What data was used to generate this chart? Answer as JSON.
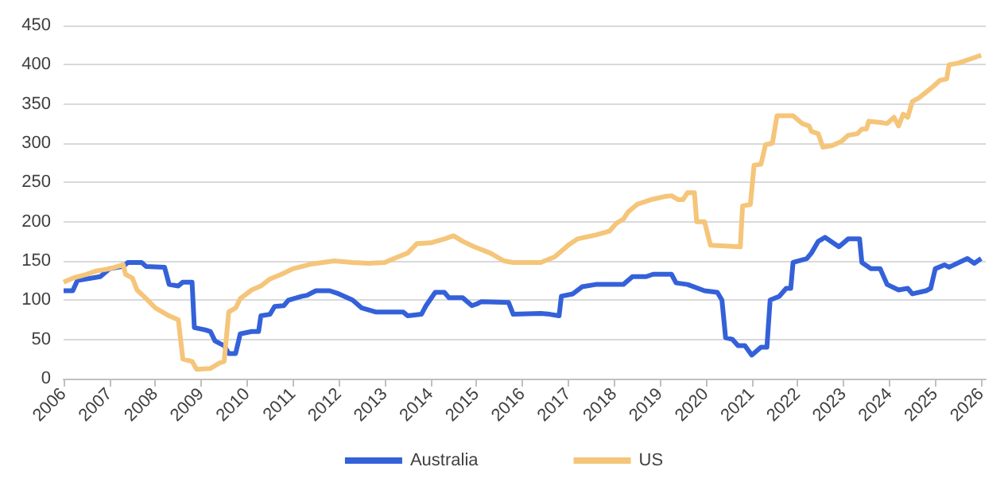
{
  "chart_data": {
    "type": "line",
    "xlim": [
      2006,
      2026.1
    ],
    "xticks": [
      2006,
      2007,
      2008,
      2009,
      2010,
      2011,
      2012,
      2013,
      2014,
      2015,
      2016,
      2017,
      2018,
      2019,
      2020,
      2021,
      2022,
      2023,
      2024,
      2025,
      2026
    ],
    "ylim": [
      0,
      450
    ],
    "yticks": [
      0,
      50,
      100,
      150,
      200,
      250,
      300,
      350,
      400,
      450
    ],
    "grid": "y",
    "legend": "bottom",
    "marker": "none",
    "line_style": "solid",
    "series": [
      {
        "name": "Australia",
        "color": "#3461d9",
        "x": [
          2006,
          2006.2,
          2006.3,
          2006.8,
          2007,
          2007.3,
          2007.4,
          2007.7,
          2007.8,
          2008.2,
          2008.3,
          2008.5,
          2008.6,
          2008.8,
          2008.85,
          2009.1,
          2009.2,
          2009.3,
          2009.5,
          2009.6,
          2009.75,
          2009.85,
          2010.1,
          2010.25,
          2010.3,
          2010.5,
          2010.6,
          2010.8,
          2010.9,
          2011.2,
          2011.3,
          2011.5,
          2011.8,
          2012,
          2012.3,
          2012.5,
          2012.8,
          2013.4,
          2013.5,
          2013.8,
          2013.9,
          2014.1,
          2014.3,
          2014.4,
          2014.7,
          2014.9,
          2015,
          2015.1,
          2015.7,
          2015.8,
          2016.4,
          2016.6,
          2016.8,
          2016.85,
          2017.1,
          2017.3,
          2017.6,
          2018.2,
          2018.4,
          2018.7,
          2018.85,
          2019.25,
          2019.35,
          2019.6,
          2019.97,
          2020.25,
          2020.35,
          2020.43,
          2020.58,
          2020.7,
          2020.85,
          2021,
          2021.1,
          2021.2,
          2021.33,
          2021.4,
          2021.6,
          2021.75,
          2021.85,
          2021.9,
          2022.2,
          2022.3,
          2022.45,
          2022.6,
          2022.9,
          2023.1,
          2023.35,
          2023.4,
          2023.6,
          2023.8,
          2023.95,
          2024.2,
          2024.4,
          2024.5,
          2024.8,
          2024.9,
          2025,
          2025.2,
          2025.3,
          2025.7,
          2025.85,
          2026
        ],
        "values": [
          112,
          112,
          125,
          130,
          140,
          143,
          148,
          148,
          143,
          142,
          120,
          118,
          123,
          123,
          65,
          62,
          60,
          48,
          42,
          32,
          32,
          57,
          60,
          60,
          80,
          82,
          92,
          93,
          100,
          105,
          106,
          112,
          112,
          108,
          100,
          90,
          85,
          85,
          80,
          82,
          93,
          110,
          110,
          103,
          103,
          93,
          95,
          98,
          97,
          82,
          83,
          82,
          80,
          105,
          108,
          117,
          120,
          120,
          130,
          130,
          133,
          133,
          122,
          120,
          112,
          110,
          100,
          52,
          50,
          42,
          42,
          30,
          35,
          40,
          40,
          100,
          105,
          115,
          115,
          148,
          153,
          160,
          175,
          180,
          168,
          178,
          178,
          148,
          140,
          140,
          120,
          113,
          115,
          108,
          112,
          115,
          140,
          145,
          142,
          153,
          147,
          153
        ]
      },
      {
        "name": "US",
        "color": "#f5c57a",
        "x": [
          2006,
          2006.2,
          2006.5,
          2006.7,
          2007,
          2007.3,
          2007.35,
          2007.5,
          2007.6,
          2007.8,
          2008,
          2008.3,
          2008.5,
          2008.6,
          2008.8,
          2008.9,
          2009.2,
          2009.4,
          2009.5,
          2009.6,
          2009.75,
          2009.85,
          2010.1,
          2010.3,
          2010.5,
          2010.75,
          2011,
          2011.2,
          2011.4,
          2011.9,
          2012.3,
          2012.65,
          2013,
          2013.2,
          2013.5,
          2013.7,
          2014,
          2014.3,
          2014.5,
          2014.7,
          2014.95,
          2015.3,
          2015.6,
          2015.8,
          2016.4,
          2016.7,
          2016.9,
          2017,
          2017.2,
          2017.6,
          2017.9,
          2018.05,
          2018.2,
          2018.3,
          2018.5,
          2018.8,
          2019.1,
          2019.25,
          2019.4,
          2019.5,
          2019.6,
          2019.75,
          2019.8,
          2019.97,
          2020.1,
          2020.75,
          2020.8,
          2020.97,
          2021.05,
          2021.2,
          2021.3,
          2021.45,
          2021.55,
          2021.9,
          2022.1,
          2022.25,
          2022.3,
          2022.45,
          2022.55,
          2022.75,
          2022.95,
          2023.1,
          2023.3,
          2023.4,
          2023.5,
          2023.55,
          2023.85,
          2023.95,
          2024.1,
          2024.2,
          2024.3,
          2024.4,
          2024.5,
          2024.65,
          2024.8,
          2024.95,
          2025.1,
          2025.25,
          2025.3,
          2025.5,
          2026
        ],
        "values": [
          123,
          128,
          133,
          137,
          140,
          145,
          133,
          128,
          113,
          102,
          90,
          80,
          75,
          25,
          22,
          12,
          13,
          20,
          22,
          85,
          90,
          102,
          113,
          118,
          127,
          133,
          140,
          143,
          146,
          150,
          148,
          147,
          148,
          153,
          160,
          172,
          173,
          178,
          182,
          175,
          168,
          160,
          150,
          148,
          148,
          155,
          165,
          170,
          178,
          183,
          188,
          198,
          203,
          212,
          222,
          228,
          232,
          233,
          228,
          228,
          237,
          237,
          200,
          200,
          170,
          168,
          220,
          222,
          272,
          273,
          298,
          300,
          335,
          335,
          325,
          322,
          315,
          312,
          295,
          297,
          302,
          310,
          312,
          318,
          318,
          328,
          326,
          325,
          333,
          322,
          337,
          333,
          353,
          358,
          365,
          372,
          380,
          382,
          400,
          402,
          412
        ]
      }
    ]
  }
}
